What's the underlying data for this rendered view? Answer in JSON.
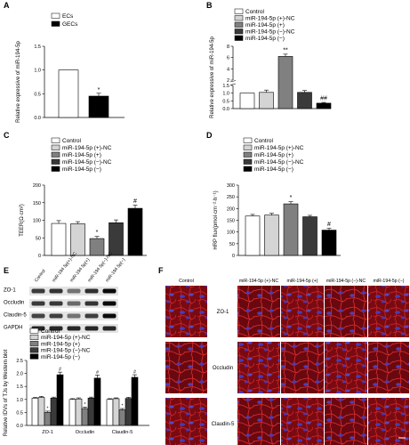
{
  "panels": {
    "A": "A",
    "B": "B",
    "C": "C",
    "D": "D",
    "E": "E",
    "F": "F"
  },
  "colors": {
    "control": "#ffffff",
    "plus_nc": "#d4d4d4",
    "plus": "#808080",
    "minus_nc": "#3a3a3a",
    "minus": "#000000",
    "fluor_bg": "#7a0a12",
    "fluor_red": "#d42a2a",
    "fluor_blue": "#4040c8"
  },
  "legend_groups": [
    "Control",
    "miR-194-5p (+)-NC",
    "miR-194-5p (+)",
    "miR-194-5p (−)-NC",
    "miR-194-5p (−)"
  ],
  "chart_data": [
    {
      "panel": "A",
      "type": "bar",
      "categories": [
        "ECs",
        "GECs"
      ],
      "values": [
        1.0,
        0.45
      ],
      "errors": [
        0.0,
        0.06
      ],
      "ylabel": "Relative expressive of miR-194-5p",
      "ylim": [
        0,
        1.5
      ],
      "yticks": [
        "0.0",
        "0.5",
        "1.0",
        "1.5"
      ],
      "legend": [
        "ECs",
        "GECs"
      ],
      "significance": [
        "",
        "*"
      ]
    },
    {
      "panel": "B",
      "type": "bar",
      "categories": [
        "Control",
        "miR-194-5p (+)-NC",
        "miR-194-5p (+)",
        "miR-194-5p (−)-NC",
        "miR-194-5p (−)"
      ],
      "values": [
        1.0,
        1.05,
        6.2,
        1.05,
        0.35
      ],
      "errors": [
        0.0,
        0.15,
        0.4,
        0.12,
        0.05
      ],
      "ylabel": "Relative expressive of miR-194-5p",
      "axis_break": true,
      "yticks_lower": [
        "0.0",
        "0.5",
        "1.0",
        "1.5"
      ],
      "yticks_upper": [
        "2",
        "4",
        "6",
        "8"
      ],
      "significance": [
        "",
        "",
        "**",
        "",
        "##"
      ]
    },
    {
      "panel": "C",
      "type": "bar",
      "categories": [
        "Control",
        "miR-194-5p (+)-NC",
        "miR-194-5p (+)",
        "miR-194-5p (−)-NC",
        "miR-194-5p (−)"
      ],
      "values": [
        91,
        90,
        48,
        93,
        134
      ],
      "errors": [
        8,
        6,
        6,
        8,
        9
      ],
      "ylabel": "TEER(Ω·cm²)",
      "ylim": [
        0,
        200
      ],
      "yticks": [
        "0",
        "50",
        "100",
        "150",
        "200"
      ],
      "significance": [
        "",
        "",
        "*",
        "",
        "#"
      ]
    },
    {
      "panel": "D",
      "type": "bar",
      "categories": [
        "Control",
        "miR-194-5p (+)-NC",
        "miR-194-5p (+)",
        "miR-194-5p (−)-NC",
        "miR-194-5p (−)"
      ],
      "values": [
        168,
        172,
        220,
        165,
        108
      ],
      "errors": [
        7,
        8,
        9,
        6,
        8
      ],
      "ylabel": "HRP flux(pmol·cm⁻²·h⁻¹)",
      "ylim": [
        0,
        300
      ],
      "yticks": [
        "0",
        "50",
        "100",
        "150",
        "200",
        "250",
        "300"
      ],
      "significance": [
        "",
        "",
        "*",
        "",
        "#"
      ]
    },
    {
      "panel": "E",
      "type": "bar",
      "groups": [
        "ZO-1",
        "Occludin",
        "Claudin-5"
      ],
      "series": [
        {
          "name": "Control",
          "values": [
            1.05,
            1.0,
            1.0
          ],
          "errors": [
            0.03,
            0.03,
            0.03
          ]
        },
        {
          "name": "miR-194-5p (+)-NC",
          "values": [
            1.08,
            1.02,
            1.03
          ],
          "errors": [
            0.04,
            0.04,
            0.03
          ]
        },
        {
          "name": "miR-194-5p (+)",
          "values": [
            0.5,
            0.65,
            0.6
          ],
          "errors": [
            0.05,
            0.05,
            0.05
          ]
        },
        {
          "name": "miR-194-5p (−)-NC",
          "values": [
            1.05,
            1.05,
            1.04
          ],
          "errors": [
            0.04,
            0.04,
            0.04
          ]
        },
        {
          "name": "miR-194-5p (−)",
          "values": [
            1.95,
            1.82,
            1.85
          ],
          "errors": [
            0.1,
            0.12,
            0.1
          ]
        }
      ],
      "significance": [
        [
          "",
          "",
          "*",
          "",
          "#"
        ],
        [
          "",
          "",
          "*",
          "",
          "#"
        ],
        [
          "",
          "",
          "*",
          "",
          "#"
        ]
      ],
      "ylabel": "Relative IDVs of TJs by Western blot",
      "ylim": [
        0,
        2.5
      ],
      "yticks": [
        "0.0",
        "0.5",
        "1.0",
        "1.5",
        "2.0",
        "2.5"
      ]
    }
  ],
  "blot": {
    "lanes": [
      "Control",
      "miR-194-5p (+)-NC",
      "miR-194-5p (+)",
      "miR-194-5p (−)-NC",
      "miR-194-5p (−)"
    ],
    "lane_labels": [
      "Control",
      "miR-194 5p(+)-NC",
      "miR-194 5p(+)",
      "miR-194 5p(−)-NC",
      "miR-194 5p(−)"
    ],
    "rows": [
      "ZO-1",
      "Occludin",
      "Claudin-5",
      "GAPDH"
    ],
    "intensity": [
      [
        0.75,
        0.78,
        0.45,
        0.8,
        1.0
      ],
      [
        0.75,
        0.76,
        0.5,
        0.78,
        1.0
      ],
      [
        0.7,
        0.72,
        0.45,
        0.72,
        1.0
      ],
      [
        0.85,
        0.85,
        0.85,
        0.85,
        0.85
      ]
    ]
  },
  "if_panel": {
    "columns": [
      "Control",
      "miR-194-5p (+)-NC",
      "miR-194-5p (+)",
      "miR-194-5p (−)-NC",
      "miR-194-5p (−)"
    ],
    "rows": [
      "ZO-1",
      "Occludin",
      "Claudin-5"
    ]
  }
}
